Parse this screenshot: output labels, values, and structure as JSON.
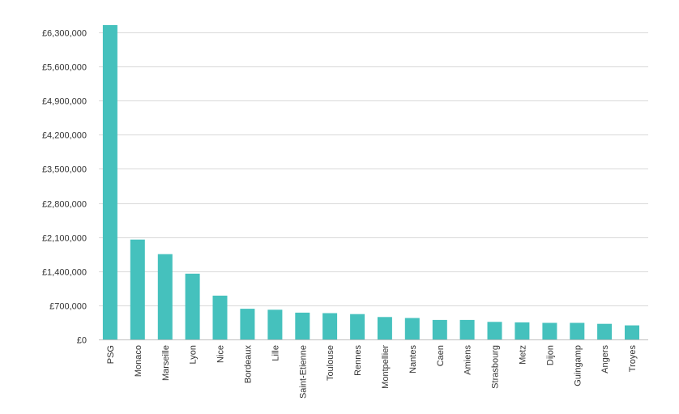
{
  "chart_data": {
    "type": "bar",
    "categories": [
      "PSG",
      "Monaco",
      "Marseille",
      "Lyon",
      "Nice",
      "Bordeaux",
      "Lille",
      "Saint-Etienne",
      "Toulouse",
      "Rennes",
      "Montpellier",
      "Nantes",
      "Caen",
      "Amiens",
      "Strasbourg",
      "Metz",
      "Dijon",
      "Guingamp",
      "Angers",
      "Troyes"
    ],
    "values": [
      6450000,
      2050000,
      1750000,
      1350000,
      900000,
      630000,
      610000,
      550000,
      540000,
      520000,
      460000,
      440000,
      400000,
      400000,
      360000,
      350000,
      340000,
      340000,
      320000,
      290000
    ],
    "yticks": [
      "£0",
      "£700,000",
      "£1,400,000",
      "£2,100,000",
      "£2,800,000",
      "£3,500,000",
      "£4,200,000",
      "£4,900,000",
      "£5,600,000",
      "£6,300,000"
    ],
    "ylim": [
      0,
      6300000
    ],
    "grid": true,
    "bar_color": "#45c1bd",
    "title": "",
    "xlabel": "",
    "ylabel": ""
  }
}
